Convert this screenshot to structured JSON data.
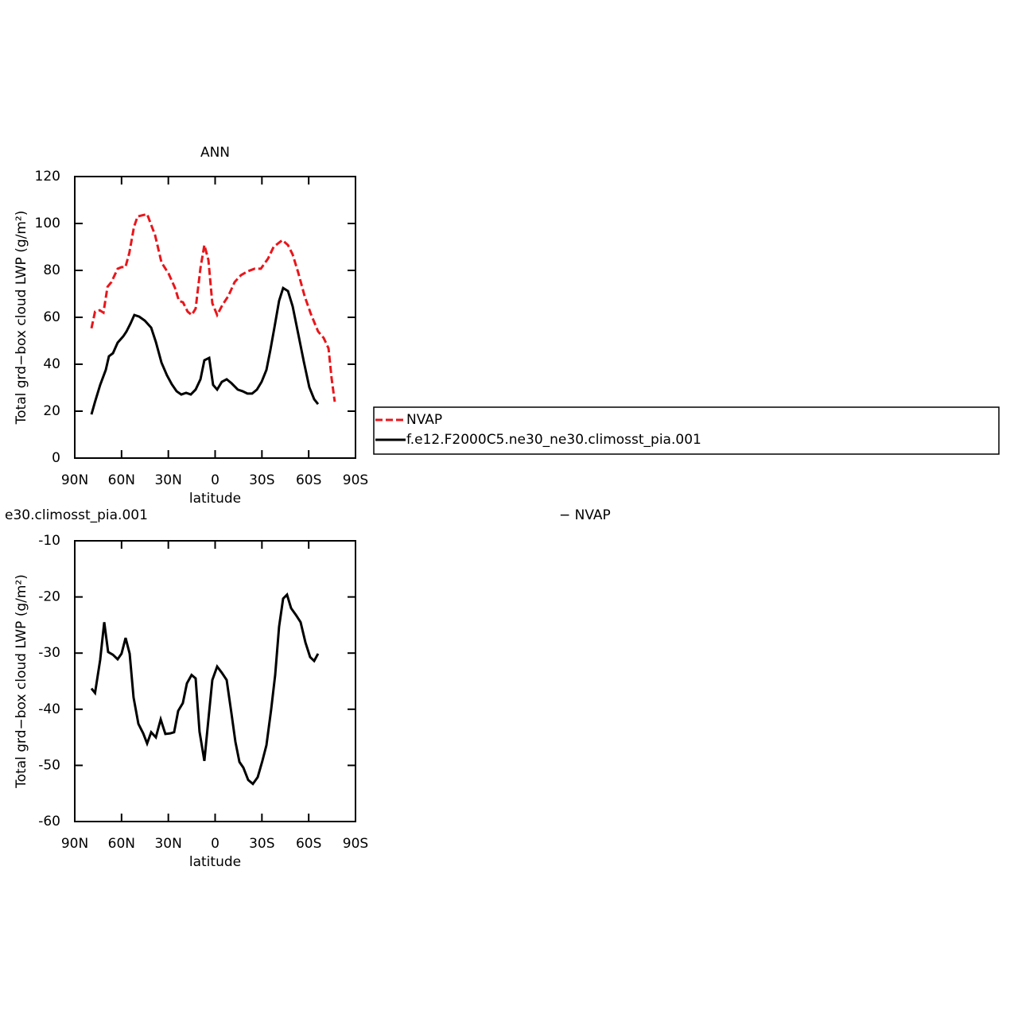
{
  "chart_data": [
    {
      "type": "line",
      "title": "ANN",
      "xlabel": "latitude",
      "ylabel": "Total grd−box cloud LWP (g/m²)",
      "xlim": [
        90,
        -90
      ],
      "xticks": [
        {
          "value": 90,
          "label": "90N"
        },
        {
          "value": 60,
          "label": "60N"
        },
        {
          "value": 30,
          "label": "30N"
        },
        0,
        {
          "value": -30,
          "label": "30S"
        },
        {
          "value": -60,
          "label": "60S"
        },
        {
          "value": -90,
          "label": "90S"
        }
      ],
      "ylim": [
        0,
        120
      ],
      "yticks": [
        0,
        20,
        40,
        60,
        80,
        100,
        120
      ],
      "legend": "right",
      "series": [
        {
          "name": "NVAP",
          "color": "#e8161b",
          "dash": true,
          "x": [
            79.3,
            77,
            74,
            71.6,
            69,
            66.5,
            62.5,
            60,
            57.5,
            55,
            52,
            49.7,
            43.6,
            38.5,
            34.4,
            29.8,
            25.7,
            23.2,
            20.6,
            17.6,
            15,
            12.5,
            9.4,
            6.9,
            4.3,
            1.8,
            -1.3,
            -4.8,
            -8.4,
            -12.5,
            -16.6,
            -21.2,
            -25.3,
            -29.3,
            -33.9,
            -37.5,
            -43.1,
            -46.7,
            -49.7,
            -53.3,
            -57.4,
            -61.4,
            -66,
            -69.6,
            -72.7,
            -74.7,
            -76.7
          ],
          "values": [
            55.3,
            62.4,
            63,
            62,
            73,
            75,
            80.7,
            81.4,
            81.4,
            87.5,
            98.6,
            103,
            104,
            95,
            83.4,
            78.6,
            72.5,
            67,
            66.4,
            62.4,
            61,
            63.7,
            81,
            90.8,
            84.4,
            66,
            61,
            65.4,
            69,
            75,
            78,
            79.7,
            80.7,
            80.7,
            85,
            90,
            92.9,
            90.8,
            86.8,
            79,
            69,
            61.4,
            54,
            51.2,
            46.8,
            33.9,
            24
          ]
        },
        {
          "name": "f.e12.F2000C5.ne30_ne30.climosst_pia.001",
          "color": "#000000",
          "dash": false,
          "x": [
            79.3,
            77,
            73.7,
            70.1,
            68.1,
            65.5,
            62.5,
            58.9,
            56.9,
            54.3,
            51.8,
            48.7,
            45.1,
            41,
            38,
            34.4,
            30.9,
            27.8,
            24.7,
            21.7,
            18.6,
            15.6,
            12.5,
            9.4,
            6.9,
            3.8,
            1.3,
            -1.3,
            -4.3,
            -7.4,
            -10.5,
            -14.5,
            -17.6,
            -20.7,
            -23.7,
            -26.8,
            -29.8,
            -32.9,
            -35.4,
            -38,
            -41,
            -43.6,
            -46.7,
            -49.7,
            -53.3,
            -56.9,
            -60.4,
            -63.5,
            -66
          ],
          "values": [
            18.6,
            24,
            31.2,
            37.6,
            43.4,
            44.7,
            49.2,
            51.9,
            53.9,
            57.3,
            61,
            60.3,
            58.6,
            55.6,
            49.5,
            40.7,
            35.3,
            31.5,
            28.5,
            27.1,
            27.8,
            27.1,
            29.2,
            33.6,
            41.7,
            42.7,
            31.2,
            29.2,
            32.5,
            33.6,
            31.9,
            29.2,
            28.5,
            27.5,
            27.5,
            29.2,
            32.5,
            37.6,
            46,
            55.6,
            67,
            72.5,
            71.2,
            64.7,
            52.9,
            41,
            30.2,
            25.1,
            23
          ]
        }
      ]
    },
    {
      "type": "line",
      "title_parts": [
        "e30.climosst_pia.001",
        "− NVAP"
      ],
      "xlabel": "latitude",
      "ylabel": "Total grd−box cloud LWP (g/m²)",
      "xlim": [
        90,
        -90
      ],
      "xticks": [
        {
          "value": 90,
          "label": "90N"
        },
        {
          "value": 60,
          "label": "60N"
        },
        {
          "value": 30,
          "label": "30N"
        },
        0,
        {
          "value": -30,
          "label": "30S"
        },
        {
          "value": -60,
          "label": "60S"
        },
        {
          "value": -90,
          "label": "90S"
        }
      ],
      "ylim": [
        -60,
        -10
      ],
      "yticks": [
        -60,
        -50,
        -40,
        -30,
        -20,
        -10
      ],
      "series": [
        {
          "color": "#000000",
          "dash": false,
          "x": [
            79.3,
            77,
            73.7,
            71.1,
            68.6,
            65.5,
            62.5,
            60,
            57.4,
            54.8,
            52.3,
            49.2,
            46.1,
            43.6,
            41,
            38,
            34.9,
            31.9,
            28.8,
            26.3,
            23.7,
            20.7,
            18.1,
            15.1,
            12.5,
            10,
            6.9,
            4.3,
            1.8,
            -1.3,
            -4.3,
            -7.4,
            -10.5,
            -13,
            -15.6,
            -18.1,
            -21.2,
            -24.2,
            -27.3,
            -30.3,
            -32.9,
            -35.9,
            -38.5,
            -41,
            -43.6,
            -46.1,
            -48.7,
            -51.8,
            -54.8,
            -57.9,
            -60.9,
            -63.5,
            -66
          ],
          "values": [
            -36.3,
            -37.1,
            -31.2,
            -24.5,
            -29.8,
            -30.3,
            -31.1,
            -30.1,
            -27.3,
            -30.1,
            -37.9,
            -42.6,
            -44.3,
            -46.1,
            -44.1,
            -45,
            -41.8,
            -44.4,
            -44.3,
            -44.1,
            -40.3,
            -38.9,
            -35.4,
            -33.9,
            -34.5,
            -44,
            -49.2,
            -41.8,
            -34.8,
            -32.4,
            -33.5,
            -34.8,
            -40.8,
            -45.8,
            -49.4,
            -50.4,
            -52.6,
            -53.3,
            -52.1,
            -49.2,
            -46.4,
            -40.1,
            -33.9,
            -25.3,
            -20.3,
            -19.6,
            -22,
            -23.2,
            -24.5,
            -28.1,
            -30.7,
            -31.4,
            -30.1
          ]
        }
      ]
    }
  ]
}
